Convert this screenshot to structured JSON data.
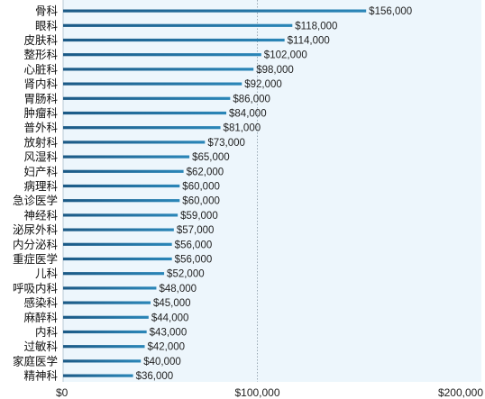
{
  "chart_data": {
    "type": "bar",
    "orientation": "horizontal",
    "categories": [
      "骨科",
      "眼科",
      "皮肤科",
      "整形科",
      "心脏科",
      "肾内科",
      "胃肠科",
      "肿瘤科",
      "普外科",
      "放射科",
      "风湿科",
      "妇产科",
      "病理科",
      "急诊医学",
      "神经科",
      "泌尿外科",
      "内分泌科",
      "重症医学",
      "儿科",
      "呼吸内科",
      "感染科",
      "麻醉科",
      "内科",
      "过敏科",
      "家庭医学",
      "精神科"
    ],
    "values": [
      156000,
      118000,
      114000,
      102000,
      98000,
      92000,
      86000,
      84000,
      81000,
      73000,
      65000,
      62000,
      60000,
      60000,
      59000,
      57000,
      56000,
      56000,
      52000,
      48000,
      45000,
      44000,
      43000,
      42000,
      40000,
      36000
    ],
    "value_labels": [
      "$156,000",
      "$118,000",
      "$114,000",
      "$102,000",
      "$98,000",
      "$92,000",
      "$86,000",
      "$84,000",
      "$81,000",
      "$73,000",
      "$65,000",
      "$62,000",
      "$60,000",
      "$60,000",
      "$59,000",
      "$57,000",
      "$56,000",
      "$56,000",
      "$52,000",
      "$48,000",
      "$45,000",
      "$44,000",
      "$43,000",
      "$42,000",
      "$40,000",
      "$36,000"
    ],
    "xlim": [
      0,
      200000
    ],
    "xticks": [
      0,
      100000,
      200000
    ],
    "xtick_labels": [
      "$0",
      "$100,000",
      "$200,000"
    ],
    "grid": "dotted vertical line at $100,000",
    "colors": {
      "bar": "#1c5a86",
      "bar_end": "#2a86b8",
      "plot_bg": "#edf6fc",
      "text": "#111111"
    }
  }
}
